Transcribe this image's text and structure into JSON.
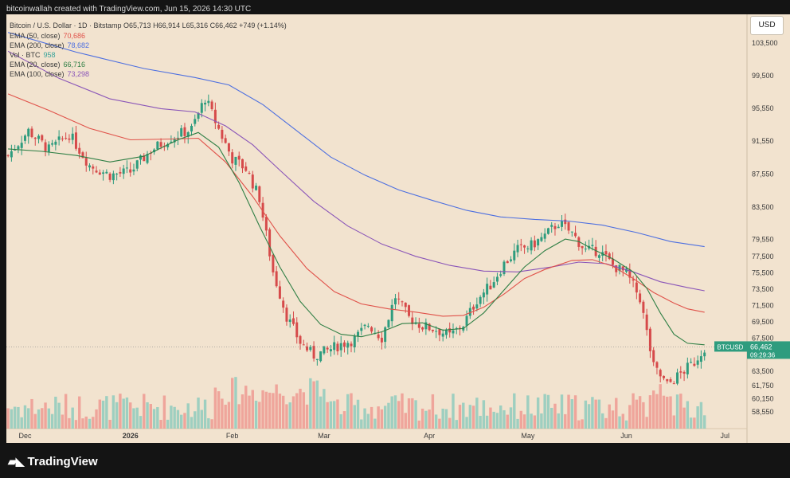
{
  "header": {
    "caption": "bitcoinwallah created with TradingView.com, Jun 15, 2026 14:30 UTC"
  },
  "ohlc_line": "Bitcoin / U.S. Dollar · 1D · Bitstamp  O65,713  H66,914  L65,316  C66,462  +749 (+1.14%)",
  "legend": [
    {
      "label": "EMA (50, close)",
      "value": "70,686",
      "color": "#e0524a"
    },
    {
      "label": "EMA (200, close)",
      "value": "78,682",
      "color": "#4d6fe0"
    },
    {
      "label": "Vol · BTC",
      "value": "958",
      "color": "#38a39a"
    },
    {
      "label": "EMA (20, close)",
      "value": "66,716",
      "color": "#2f7f45"
    },
    {
      "label": "EMA (100, close)",
      "value": "73,298",
      "color": "#8a55b8"
    }
  ],
  "currency_button": "USD",
  "price_tag": {
    "symbol": "BTCUSD",
    "price": "66,462",
    "countdown": "09:29:36"
  },
  "logo_text": "TradingView",
  "colors": {
    "bg": "#f2e3cf",
    "up": "#2e9c7e",
    "down": "#d64a4a",
    "vol_up": "#8fcbbd",
    "vol_down": "#ee9a92"
  },
  "chart_data": {
    "type": "candlestick",
    "ylim": [
      56500,
      107000
    ],
    "y_ticks": [
      "103,500",
      "99,500",
      "95,550",
      "91,550",
      "87,550",
      "83,500",
      "79,550",
      "77,500",
      "75,500",
      "73,500",
      "71,500",
      "69,500",
      "67,500",
      "63,500",
      "61,750",
      "60,150",
      "58,550"
    ],
    "x_ticks": [
      "Dec",
      "2026",
      "Feb",
      "Mar",
      "Apr",
      "May",
      "Jun",
      "Jul"
    ],
    "bars_total_slots": 218,
    "close_path": [
      [
        0,
        89800
      ],
      [
        6,
        92800
      ],
      [
        12,
        90500
      ],
      [
        18,
        92400
      ],
      [
        24,
        88600
      ],
      [
        30,
        87400
      ],
      [
        36,
        87800
      ],
      [
        42,
        90400
      ],
      [
        48,
        92000
      ],
      [
        54,
        93000
      ],
      [
        58,
        96800
      ],
      [
        62,
        93000
      ],
      [
        66,
        89400
      ],
      [
        70,
        88200
      ],
      [
        74,
        84600
      ],
      [
        78,
        75600
      ],
      [
        82,
        70200
      ],
      [
        86,
        67000
      ],
      [
        90,
        65400
      ],
      [
        94,
        66000
      ],
      [
        98,
        66800
      ],
      [
        102,
        67400
      ],
      [
        106,
        69200
      ],
      [
        110,
        67600
      ],
      [
        114,
        72600
      ],
      [
        118,
        70000
      ],
      [
        122,
        69000
      ],
      [
        126,
        68600
      ],
      [
        130,
        67800
      ],
      [
        134,
        69200
      ],
      [
        138,
        72200
      ],
      [
        142,
        74000
      ],
      [
        146,
        76600
      ],
      [
        150,
        78300
      ],
      [
        154,
        78800
      ],
      [
        158,
        80000
      ],
      [
        162,
        81600
      ],
      [
        166,
        80300
      ],
      [
        170,
        78200
      ],
      [
        174,
        78200
      ],
      [
        178,
        76400
      ],
      [
        182,
        75400
      ],
      [
        186,
        72400
      ],
      [
        190,
        64000
      ],
      [
        194,
        61800
      ],
      [
        198,
        63200
      ],
      [
        202,
        64600
      ],
      [
        205,
        66462
      ]
    ],
    "ema_20": [
      [
        0,
        90600
      ],
      [
        10,
        90300
      ],
      [
        20,
        89800
      ],
      [
        30,
        89000
      ],
      [
        40,
        89700
      ],
      [
        50,
        91700
      ],
      [
        56,
        92600
      ],
      [
        62,
        90800
      ],
      [
        68,
        86500
      ],
      [
        74,
        81200
      ],
      [
        80,
        76200
      ],
      [
        86,
        72000
      ],
      [
        92,
        69200
      ],
      [
        98,
        68000
      ],
      [
        104,
        67700
      ],
      [
        110,
        68300
      ],
      [
        116,
        69300
      ],
      [
        122,
        69400
      ],
      [
        128,
        68500
      ],
      [
        134,
        68700
      ],
      [
        140,
        70600
      ],
      [
        146,
        73400
      ],
      [
        152,
        76200
      ],
      [
        158,
        78200
      ],
      [
        164,
        79600
      ],
      [
        168,
        79300
      ],
      [
        172,
        78400
      ],
      [
        178,
        77200
      ],
      [
        184,
        75600
      ],
      [
        188,
        73600
      ],
      [
        192,
        70600
      ],
      [
        196,
        68000
      ],
      [
        200,
        66900
      ],
      [
        205,
        66716
      ]
    ],
    "ema_50": [
      [
        0,
        97300
      ],
      [
        12,
        95300
      ],
      [
        24,
        93100
      ],
      [
        36,
        91700
      ],
      [
        48,
        91800
      ],
      [
        56,
        91900
      ],
      [
        64,
        89000
      ],
      [
        72,
        84800
      ],
      [
        80,
        80000
      ],
      [
        88,
        76000
      ],
      [
        96,
        73200
      ],
      [
        104,
        71700
      ],
      [
        112,
        71100
      ],
      [
        120,
        70700
      ],
      [
        128,
        70200
      ],
      [
        134,
        70300
      ],
      [
        140,
        71300
      ],
      [
        146,
        72900
      ],
      [
        152,
        74800
      ],
      [
        158,
        75900
      ],
      [
        166,
        77000
      ],
      [
        172,
        77100
      ],
      [
        178,
        76300
      ],
      [
        184,
        74800
      ],
      [
        190,
        73100
      ],
      [
        196,
        71800
      ],
      [
        200,
        71100
      ],
      [
        205,
        70686
      ]
    ],
    "ema_100": [
      [
        0,
        102500
      ],
      [
        15,
        99200
      ],
      [
        30,
        96700
      ],
      [
        45,
        95500
      ],
      [
        55,
        95100
      ],
      [
        64,
        93400
      ],
      [
        72,
        91100
      ],
      [
        80,
        88000
      ],
      [
        90,
        84200
      ],
      [
        100,
        81200
      ],
      [
        110,
        79000
      ],
      [
        120,
        77500
      ],
      [
        130,
        76400
      ],
      [
        140,
        75700
      ],
      [
        150,
        75600
      ],
      [
        160,
        76200
      ],
      [
        168,
        76800
      ],
      [
        176,
        76600
      ],
      [
        184,
        75600
      ],
      [
        192,
        74400
      ],
      [
        200,
        73700
      ],
      [
        205,
        73298
      ]
    ],
    "ema_200": [
      [
        0,
        104800
      ],
      [
        20,
        102400
      ],
      [
        40,
        100400
      ],
      [
        55,
        99300
      ],
      [
        65,
        98400
      ],
      [
        75,
        96000
      ],
      [
        85,
        92800
      ],
      [
        95,
        89600
      ],
      [
        105,
        87400
      ],
      [
        115,
        85600
      ],
      [
        125,
        84300
      ],
      [
        135,
        83100
      ],
      [
        145,
        82300
      ],
      [
        155,
        82000
      ],
      [
        165,
        81800
      ],
      [
        175,
        81300
      ],
      [
        185,
        80400
      ],
      [
        195,
        79300
      ],
      [
        205,
        78682
      ]
    ]
  }
}
